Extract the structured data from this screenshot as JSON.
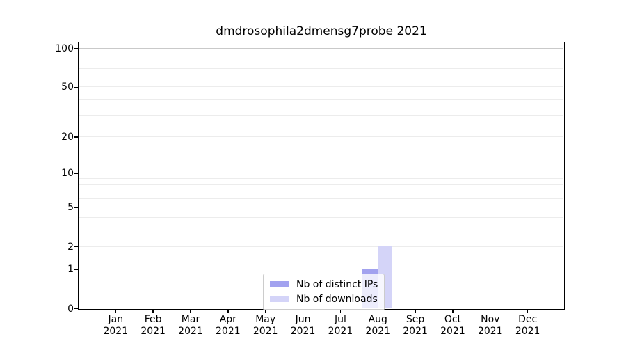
{
  "chart_data": {
    "type": "bar",
    "title": "dmdrosophila2dmensg7probe 2021",
    "categories": [
      "Jan",
      "Feb",
      "Mar",
      "Apr",
      "May",
      "Jun",
      "Jul",
      "Aug",
      "Sep",
      "Oct",
      "Nov",
      "Dec"
    ],
    "year": "2021",
    "series": [
      {
        "name": "Nb of distinct IPs",
        "color": "#a2a2ef",
        "values": [
          0,
          0,
          0,
          0,
          0,
          0,
          0,
          1,
          0,
          0,
          0,
          0
        ]
      },
      {
        "name": "Nb of downloads",
        "color": "#d4d4f8",
        "values": [
          0,
          0,
          0,
          0,
          0,
          0,
          0,
          2,
          0,
          0,
          0,
          0
        ]
      }
    ],
    "xlabel": "",
    "ylabel": "",
    "y_axis": {
      "scale": "log10(value+1)",
      "tick_labels": [
        0,
        1,
        2,
        5,
        10,
        20,
        50,
        100
      ],
      "major_gridlines": [
        1,
        10,
        100
      ],
      "minor_gridlines": [
        2,
        3,
        4,
        5,
        6,
        7,
        8,
        9,
        20,
        30,
        40,
        50,
        60,
        70,
        80,
        90
      ],
      "ylim": [
        0,
        112
      ]
    },
    "grid": true,
    "legend_position": "lower-center"
  },
  "colors": {
    "major_grid": "#c9c9c9",
    "minor_grid": "#ececec",
    "axis": "#000000",
    "legend_border": "#cccccc",
    "background": "#ffffff"
  }
}
